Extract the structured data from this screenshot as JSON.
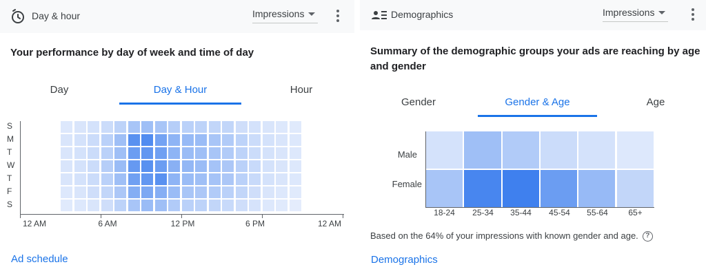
{
  "left": {
    "header_title": "Day & hour",
    "metric": "Impressions",
    "heading": "Your performance by day of week and time of day",
    "tabs": [
      {
        "label": "Day"
      },
      {
        "label": "Day & Hour"
      },
      {
        "label": "Hour"
      }
    ],
    "active_tab": 1,
    "days": [
      "S",
      "M",
      "T",
      "W",
      "T",
      "F",
      "S"
    ],
    "x_labels": [
      "12 AM",
      "6 AM",
      "12 PM",
      "6 PM",
      "12 AM"
    ],
    "link": "Ad schedule"
  },
  "right": {
    "header_title": "Demographics",
    "metric": "Impressions",
    "heading": "Summary of the demographic groups your ads are reaching by age and gender",
    "tabs": [
      {
        "label": "Gender"
      },
      {
        "label": "Gender & Age"
      },
      {
        "label": "Age"
      }
    ],
    "active_tab": 1,
    "rows": [
      "Male",
      "Female"
    ],
    "columns": [
      "18-24",
      "25-34",
      "35-44",
      "45-54",
      "55-64",
      "65+"
    ],
    "footnote": "Based on the 64% of your impressions with known gender and age.",
    "link": "Demographics"
  },
  "colors": {
    "accent": "#1a73e8",
    "heat_min": "#eef3fd",
    "heat_max": "#3f80ee"
  },
  "chart_data": [
    {
      "type": "heatmap",
      "title": "Day & Hour",
      "y_categories": [
        "S",
        "M",
        "T",
        "W",
        "T",
        "F",
        "S"
      ],
      "x_hours": [
        3,
        4,
        5,
        6,
        7,
        8,
        9,
        10,
        11,
        12,
        13,
        14,
        15,
        16,
        17,
        18,
        19,
        20
      ],
      "x_tick_labels": [
        "12 AM",
        "6 AM",
        "12 PM",
        "6 PM",
        "12 AM"
      ],
      "values": [
        [
          0.1,
          0.12,
          0.15,
          0.2,
          0.28,
          0.4,
          0.45,
          0.4,
          0.32,
          0.3,
          0.28,
          0.25,
          0.25,
          0.18,
          0.15,
          0.12,
          0.1,
          0.08
        ],
        [
          0.12,
          0.15,
          0.2,
          0.3,
          0.45,
          0.85,
          0.9,
          0.7,
          0.55,
          0.5,
          0.48,
          0.4,
          0.35,
          0.28,
          0.2,
          0.15,
          0.12,
          0.1
        ],
        [
          0.12,
          0.15,
          0.2,
          0.3,
          0.45,
          0.75,
          0.8,
          0.72,
          0.55,
          0.48,
          0.45,
          0.4,
          0.35,
          0.28,
          0.2,
          0.15,
          0.12,
          0.1
        ],
        [
          0.12,
          0.15,
          0.2,
          0.32,
          0.48,
          0.78,
          0.85,
          0.75,
          0.58,
          0.52,
          0.48,
          0.42,
          0.38,
          0.3,
          0.22,
          0.15,
          0.12,
          0.1
        ],
        [
          0.12,
          0.15,
          0.2,
          0.3,
          0.45,
          0.72,
          0.8,
          0.85,
          0.55,
          0.48,
          0.45,
          0.42,
          0.38,
          0.3,
          0.22,
          0.15,
          0.12,
          0.1
        ],
        [
          0.1,
          0.12,
          0.18,
          0.25,
          0.38,
          0.6,
          0.65,
          0.6,
          0.48,
          0.4,
          0.38,
          0.35,
          0.3,
          0.25,
          0.18,
          0.12,
          0.1,
          0.08
        ],
        [
          0.08,
          0.1,
          0.12,
          0.18,
          0.28,
          0.4,
          0.48,
          0.45,
          0.35,
          0.3,
          0.28,
          0.25,
          0.22,
          0.18,
          0.14,
          0.1,
          0.08,
          0.06
        ]
      ]
    },
    {
      "type": "heatmap",
      "title": "Gender & Age",
      "y_categories": [
        "Male",
        "Female"
      ],
      "x_categories": [
        "18-24",
        "25-34",
        "35-44",
        "45-54",
        "55-64",
        "65+"
      ],
      "values": [
        [
          0.15,
          0.45,
          0.35,
          0.2,
          0.15,
          0.1
        ],
        [
          0.4,
          0.95,
          1.0,
          0.75,
          0.5,
          0.25
        ]
      ]
    }
  ]
}
